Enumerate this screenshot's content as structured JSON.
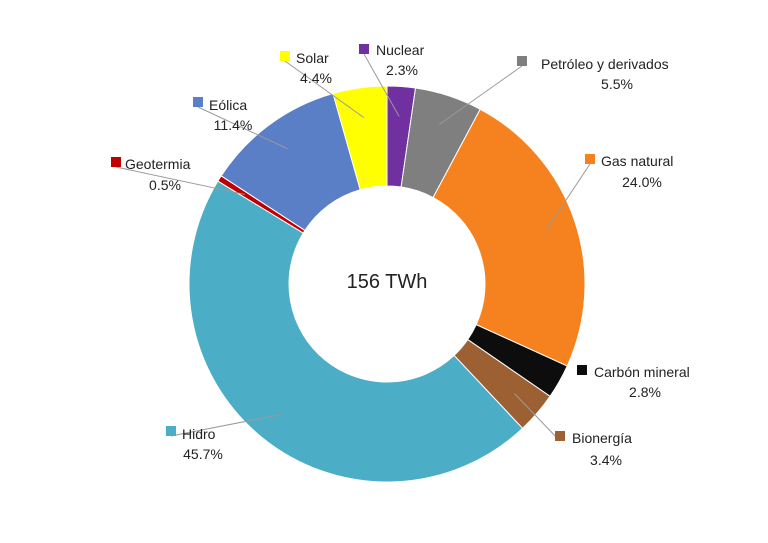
{
  "chart_data": {
    "type": "pie",
    "donut": true,
    "center_label": "156 TWh",
    "slices": [
      {
        "name": "Nuclear",
        "label": "2.3%",
        "value": 2.3,
        "color": "#7030a0"
      },
      {
        "name": "Petróleo y derivados",
        "label": "5.5%",
        "value": 5.5,
        "color": "#7f7f7f"
      },
      {
        "name": "Gas natural",
        "label": "24.0%",
        "value": 24.0,
        "color": "#f5821f"
      },
      {
        "name": "Carbón mineral",
        "label": "2.8%",
        "value": 2.8,
        "color": "#0d0d0d"
      },
      {
        "name": "Bionergía",
        "label": "3.4%",
        "value": 3.4,
        "color": "#9c6033"
      },
      {
        "name": "Hidro",
        "label": "45.7%",
        "value": 45.7,
        "color": "#4badc6"
      },
      {
        "name": "Geotermia",
        "label": "0.5%",
        "value": 0.5,
        "color": "#c00000"
      },
      {
        "name": "Eólica",
        "label": "11.4%",
        "value": 11.4,
        "color": "#5b7fc6"
      },
      {
        "name": "Solar",
        "label": "4.4%",
        "value": 4.4,
        "color": "#ffff00"
      }
    ]
  }
}
